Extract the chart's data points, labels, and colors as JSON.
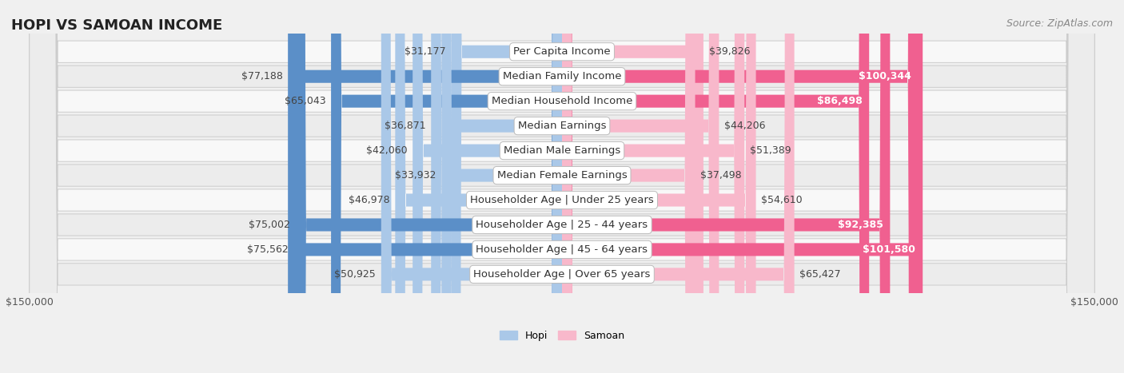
{
  "title": "HOPI VS SAMOAN INCOME",
  "source": "Source: ZipAtlas.com",
  "categories": [
    "Per Capita Income",
    "Median Family Income",
    "Median Household Income",
    "Median Earnings",
    "Median Male Earnings",
    "Median Female Earnings",
    "Householder Age | Under 25 years",
    "Householder Age | 25 - 44 years",
    "Householder Age | 45 - 64 years",
    "Householder Age | Over 65 years"
  ],
  "hopi_values": [
    31177,
    77188,
    65043,
    36871,
    42060,
    33932,
    46978,
    75002,
    75562,
    50925
  ],
  "samoan_values": [
    39826,
    100344,
    86498,
    44206,
    51389,
    37498,
    54610,
    92385,
    101580,
    65427
  ],
  "hopi_labels": [
    "$31,177",
    "$77,188",
    "$65,043",
    "$36,871",
    "$42,060",
    "$33,932",
    "$46,978",
    "$75,002",
    "$75,562",
    "$50,925"
  ],
  "samoan_labels": [
    "$39,826",
    "$100,344",
    "$86,498",
    "$44,206",
    "$51,389",
    "$37,498",
    "$54,610",
    "$92,385",
    "$101,580",
    "$65,427"
  ],
  "hopi_color_light": "#aac8e8",
  "hopi_color_dark": "#5b8fc8",
  "samoan_color_light": "#f8b8cb",
  "samoan_color_dark": "#f06090",
  "max_value": 150000,
  "background_color": "#f0f0f0",
  "row_even_color": "#f8f8f8",
  "row_odd_color": "#ececec",
  "hopi_label_threshold": 60000,
  "samoan_label_threshold": 75000,
  "title_fontsize": 13,
  "source_fontsize": 9,
  "tick_label_fontsize": 9,
  "bar_label_fontsize": 9,
  "category_fontsize": 9.5,
  "legend_fontsize": 9
}
